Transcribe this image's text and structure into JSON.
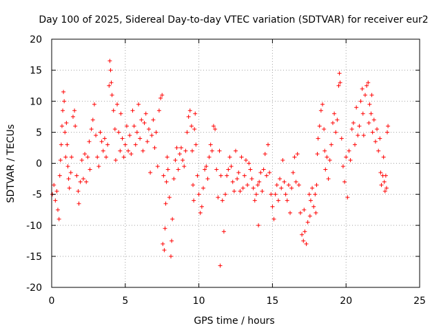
{
  "chart_data": {
    "type": "scatter",
    "title": "Day 100 of 2025, Sidereal Day-to-day VTEC variation (SDTVAR) for receiver eur2",
    "xlabel": "GPS time / hours",
    "ylabel": "SDTVAR / TECUs",
    "xlim": [
      0,
      25
    ],
    "ylim": [
      -20,
      20
    ],
    "xticks": [
      0,
      5,
      10,
      15,
      20,
      25
    ],
    "yticks": [
      -20,
      -15,
      -10,
      -5,
      0,
      5,
      10,
      15,
      20
    ],
    "xtick_labels": [
      "0",
      "5",
      "10",
      "15",
      "20",
      "25"
    ],
    "ytick_labels": [
      "-20",
      "-15",
      "-10",
      "-5",
      "0",
      "5",
      "10",
      "15",
      "20"
    ],
    "grid": true,
    "marker": "+",
    "marker_color": "#ff0000",
    "series": [
      {
        "name": "SDTVAR",
        "points": [
          [
            0.05,
            -5.0
          ],
          [
            0.15,
            -3.5
          ],
          [
            0.25,
            -6.0
          ],
          [
            0.35,
            -4.5
          ],
          [
            0.42,
            -7.5
          ],
          [
            0.5,
            -9.0
          ],
          [
            0.55,
            -2.0
          ],
          [
            0.6,
            0.5
          ],
          [
            0.65,
            3.0
          ],
          [
            0.7,
            6.0
          ],
          [
            0.75,
            8.5
          ],
          [
            0.8,
            11.5
          ],
          [
            0.85,
            10.0
          ],
          [
            0.9,
            5.0
          ],
          [
            0.95,
            1.0
          ],
          [
            1.0,
            6.5
          ],
          [
            1.05,
            3.0
          ],
          [
            1.1,
            -0.5
          ],
          [
            1.15,
            -2.5
          ],
          [
            1.2,
            -4.0
          ],
          [
            1.3,
            -1.5
          ],
          [
            1.35,
            1.0
          ],
          [
            1.45,
            7.5
          ],
          [
            1.55,
            8.5
          ],
          [
            1.6,
            6.0
          ],
          [
            1.7,
            -2.0
          ],
          [
            1.8,
            -4.5
          ],
          [
            1.85,
            -6.5
          ],
          [
            1.95,
            -3.0
          ],
          [
            2.05,
            0.5
          ],
          [
            2.15,
            -2.5
          ],
          [
            2.25,
            1.5
          ],
          [
            2.35,
            -3.0
          ],
          [
            2.45,
            1.0
          ],
          [
            2.55,
            3.5
          ],
          [
            2.6,
            -1.0
          ],
          [
            2.7,
            5.5
          ],
          [
            2.8,
            7.0
          ],
          [
            2.9,
            9.5
          ],
          [
            3.0,
            4.5
          ],
          [
            3.1,
            1.0
          ],
          [
            3.2,
            -0.5
          ],
          [
            3.3,
            5.0
          ],
          [
            3.4,
            3.5
          ],
          [
            3.5,
            2.0
          ],
          [
            3.6,
            4.0
          ],
          [
            3.7,
            1.0
          ],
          [
            3.8,
            3.0
          ],
          [
            3.9,
            12.5
          ],
          [
            3.95,
            16.5
          ],
          [
            4.0,
            15.0
          ],
          [
            4.05,
            13.0
          ],
          [
            4.1,
            11.0
          ],
          [
            4.2,
            8.5
          ],
          [
            4.3,
            5.5
          ],
          [
            4.35,
            0.5
          ],
          [
            4.45,
            9.5
          ],
          [
            4.55,
            5.0
          ],
          [
            4.65,
            2.0
          ],
          [
            4.7,
            8.0
          ],
          [
            4.8,
            4.0
          ],
          [
            4.9,
            1.0
          ],
          [
            5.0,
            3.0
          ],
          [
            5.1,
            6.0
          ],
          [
            5.2,
            2.0
          ],
          [
            5.3,
            4.5
          ],
          [
            5.4,
            1.5
          ],
          [
            5.5,
            8.5
          ],
          [
            5.6,
            6.0
          ],
          [
            5.7,
            3.0
          ],
          [
            5.8,
            5.0
          ],
          [
            5.9,
            9.5
          ],
          [
            6.0,
            4.0
          ],
          [
            6.1,
            7.0
          ],
          [
            6.2,
            2.0
          ],
          [
            6.3,
            6.5
          ],
          [
            6.4,
            8.0
          ],
          [
            6.5,
            3.5
          ],
          [
            6.6,
            5.5
          ],
          [
            6.7,
            -1.5
          ],
          [
            6.8,
            4.5
          ],
          [
            6.9,
            7.0
          ],
          [
            7.0,
            2.5
          ],
          [
            7.1,
            5.0
          ],
          [
            7.2,
            -0.5
          ],
          [
            7.3,
            8.5
          ],
          [
            7.4,
            10.5
          ],
          [
            7.5,
            11.0
          ],
          [
            7.55,
            -13.0
          ],
          [
            7.6,
            -2.0
          ],
          [
            7.65,
            -14.0
          ],
          [
            7.7,
            -10.5
          ],
          [
            7.75,
            -6.5
          ],
          [
            7.8,
            -3.0
          ],
          [
            7.85,
            1.0
          ],
          [
            7.9,
            -1.0
          ],
          [
            8.0,
            -5.5
          ],
          [
            8.1,
            -15.0
          ],
          [
            8.15,
            -12.5
          ],
          [
            8.2,
            -9.0
          ],
          [
            8.3,
            -2.5
          ],
          [
            8.4,
            0.5
          ],
          [
            8.5,
            2.5
          ],
          [
            8.6,
            -1.0
          ],
          [
            8.7,
            1.5
          ],
          [
            8.8,
            2.5
          ],
          [
            8.9,
            0.5
          ],
          [
            9.0,
            -0.5
          ],
          [
            9.1,
            2.0
          ],
          [
            9.2,
            5.0
          ],
          [
            9.3,
            7.5
          ],
          [
            9.4,
            8.5
          ],
          [
            9.5,
            6.0
          ],
          [
            9.55,
            2.0
          ],
          [
            9.6,
            -3.5
          ],
          [
            9.65,
            -6.0
          ],
          [
            9.7,
            5.5
          ],
          [
            9.75,
            8.0
          ],
          [
            9.8,
            3.0
          ],
          [
            9.9,
            -2.0
          ],
          [
            10.0,
            -5.0
          ],
          [
            10.1,
            -8.0
          ],
          [
            10.2,
            -7.0
          ],
          [
            10.3,
            -4.0
          ],
          [
            10.4,
            -1.0
          ],
          [
            10.5,
            -0.5
          ],
          [
            10.6,
            -2.5
          ],
          [
            10.7,
            1.0
          ],
          [
            10.8,
            3.0
          ],
          [
            10.9,
            2.0
          ],
          [
            11.0,
            6.0
          ],
          [
            11.1,
            5.5
          ],
          [
            11.2,
            -1.0
          ],
          [
            11.3,
            -5.5
          ],
          [
            11.4,
            2.0
          ],
          [
            11.45,
            -16.5
          ],
          [
            11.5,
            -2.0
          ],
          [
            11.6,
            -6.0
          ],
          [
            11.7,
            -11.0
          ],
          [
            11.8,
            -5.0
          ],
          [
            11.9,
            -2.0
          ],
          [
            12.0,
            -1.0
          ],
          [
            12.1,
            1.0
          ],
          [
            12.2,
            -0.5
          ],
          [
            12.3,
            -3.0
          ],
          [
            12.4,
            -4.5
          ],
          [
            12.5,
            2.0
          ],
          [
            12.6,
            -2.5
          ],
          [
            12.7,
            -1.5
          ],
          [
            12.8,
            -4.5
          ],
          [
            12.9,
            1.0
          ],
          [
            13.0,
            -4.0
          ],
          [
            13.1,
            -2.0
          ],
          [
            13.2,
            0.5
          ],
          [
            13.3,
            -3.5
          ],
          [
            13.4,
            0.0
          ],
          [
            13.5,
            -1.0
          ],
          [
            13.6,
            -2.5
          ],
          [
            13.7,
            -4.0
          ],
          [
            13.8,
            -6.0
          ],
          [
            13.9,
            -5.0
          ],
          [
            14.0,
            -3.5
          ],
          [
            14.05,
            -10.0
          ],
          [
            14.1,
            -3.0
          ],
          [
            14.2,
            -1.5
          ],
          [
            14.3,
            -4.5
          ],
          [
            14.4,
            -1.0
          ],
          [
            14.5,
            1.5
          ],
          [
            14.6,
            -2.0
          ],
          [
            14.7,
            3.0
          ],
          [
            14.8,
            -1.5
          ],
          [
            14.9,
            -5.0
          ],
          [
            15.0,
            -7.0
          ],
          [
            15.1,
            -9.0
          ],
          [
            15.2,
            -5.0
          ],
          [
            15.3,
            -3.5
          ],
          [
            15.4,
            -6.0
          ],
          [
            15.5,
            -2.5
          ],
          [
            15.6,
            -4.0
          ],
          [
            15.7,
            0.5
          ],
          [
            15.8,
            -3.0
          ],
          [
            15.9,
            -5.0
          ],
          [
            16.0,
            -6.0
          ],
          [
            16.1,
            -3.5
          ],
          [
            16.2,
            -8.0
          ],
          [
            16.3,
            -4.0
          ],
          [
            16.4,
            -1.5
          ],
          [
            16.5,
            1.0
          ],
          [
            16.6,
            -3.0
          ],
          [
            16.7,
            1.5
          ],
          [
            16.8,
            -3.5
          ],
          [
            16.9,
            -8.0
          ],
          [
            17.0,
            -11.5
          ],
          [
            17.1,
            -12.5
          ],
          [
            17.15,
            -7.5
          ],
          [
            17.2,
            -11.0
          ],
          [
            17.3,
            -13.0
          ],
          [
            17.4,
            -9.5
          ],
          [
            17.5,
            -5.0
          ],
          [
            17.55,
            -8.5
          ],
          [
            17.6,
            -6.0
          ],
          [
            17.7,
            -4.0
          ],
          [
            17.8,
            -7.0
          ],
          [
            17.9,
            -5.0
          ],
          [
            17.95,
            -8.0
          ],
          [
            18.0,
            -3.5
          ],
          [
            18.05,
            1.5
          ],
          [
            18.1,
            4.0
          ],
          [
            18.2,
            6.0
          ],
          [
            18.3,
            8.5
          ],
          [
            18.4,
            9.5
          ],
          [
            18.5,
            5.5
          ],
          [
            18.55,
            2.0
          ],
          [
            18.6,
            -1.0
          ],
          [
            18.7,
            1.0
          ],
          [
            18.8,
            -2.5
          ],
          [
            18.9,
            0.5
          ],
          [
            19.0,
            3.0
          ],
          [
            19.1,
            6.5
          ],
          [
            19.2,
            8.0
          ],
          [
            19.3,
            5.0
          ],
          [
            19.4,
            7.0
          ],
          [
            19.5,
            12.5
          ],
          [
            19.55,
            14.5
          ],
          [
            19.6,
            13.0
          ],
          [
            19.7,
            4.0
          ],
          [
            19.8,
            -0.5
          ],
          [
            19.9,
            -3.0
          ],
          [
            20.0,
            1.0
          ],
          [
            20.1,
            -5.5
          ],
          [
            20.2,
            2.0
          ],
          [
            20.3,
            0.5
          ],
          [
            20.4,
            5.5
          ],
          [
            20.5,
            6.5
          ],
          [
            20.6,
            3.0
          ],
          [
            20.7,
            9.0
          ],
          [
            20.8,
            4.5
          ],
          [
            20.9,
            6.0
          ],
          [
            21.0,
            10.0
          ],
          [
            21.1,
            12.0
          ],
          [
            21.15,
            8.0
          ],
          [
            21.2,
            4.5
          ],
          [
            21.3,
            11.0
          ],
          [
            21.4,
            12.5
          ],
          [
            21.5,
            13.0
          ],
          [
            21.55,
            6.5
          ],
          [
            21.6,
            9.5
          ],
          [
            21.7,
            8.0
          ],
          [
            21.75,
            11.0
          ],
          [
            21.8,
            5.0
          ],
          [
            21.9,
            7.0
          ],
          [
            22.0,
            3.5
          ],
          [
            22.1,
            5.5
          ],
          [
            22.2,
            2.0
          ],
          [
            22.3,
            4.0
          ],
          [
            22.35,
            -1.5
          ],
          [
            22.4,
            -3.5
          ],
          [
            22.5,
            -2.0
          ],
          [
            22.55,
            1.0
          ],
          [
            22.6,
            -3.0
          ],
          [
            22.65,
            -4.5
          ],
          [
            22.7,
            -2.0
          ],
          [
            22.75,
            -4.0
          ],
          [
            22.8,
            5.0
          ],
          [
            22.85,
            6.0
          ]
        ]
      }
    ]
  }
}
